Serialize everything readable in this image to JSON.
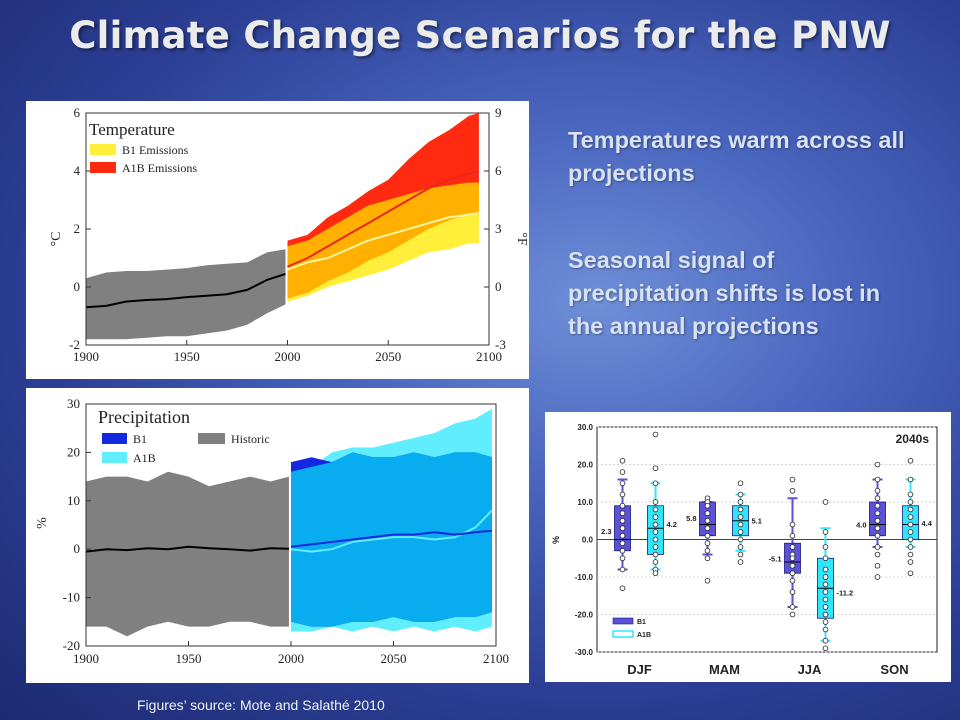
{
  "slide": {
    "title": "Climate Change Scenarios for the PNW",
    "bullet1": "Temperatures warm across all projections",
    "bullet2": "Seasonal signal of precipitation shifts is lost in the annual projections",
    "source": "Figures’ source: Mote and Salathé 2010"
  },
  "colors": {
    "historic": "#808080",
    "b1_band": "#ffef3a",
    "a1b_band": "#ff2a10",
    "overlap_band": "#ffb000",
    "b1_line": "#fff59a",
    "a1b_line": "#e8281a",
    "precip_b1": "#1428e0",
    "precip_a1b": "#60eeff",
    "precip_overlap": "#0aacf0",
    "box_b1": "#5b52d8",
    "box_a1b": "#30e6ff"
  },
  "chart_data": [
    {
      "type": "area",
      "title": "Temperature",
      "ylabel": "°C",
      "y2label": "°F",
      "xlim": [
        1900,
        2100
      ],
      "ylim": [
        -2,
        6
      ],
      "y2lim": [
        -3,
        9
      ],
      "xticks": [
        1900,
        1950,
        2000,
        2050,
        2100
      ],
      "yticks": [
        -2,
        0,
        2,
        4,
        6
      ],
      "y2ticks": [
        -3,
        0,
        3,
        6,
        9
      ],
      "legend": [
        "B1 Emissions",
        "A1B Emissions"
      ],
      "historic": {
        "x": [
          1900,
          1910,
          1920,
          1930,
          1940,
          1950,
          1960,
          1970,
          1980,
          1990,
          1999
        ],
        "mean": [
          -0.7,
          -0.65,
          -0.5,
          -0.45,
          -0.42,
          -0.35,
          -0.3,
          -0.25,
          -0.1,
          0.25,
          0.45
        ],
        "low": [
          -1.8,
          -1.8,
          -1.8,
          -1.75,
          -1.7,
          -1.7,
          -1.6,
          -1.5,
          -1.3,
          -0.9,
          -0.6
        ],
        "high": [
          0.3,
          0.5,
          0.55,
          0.55,
          0.6,
          0.65,
          0.75,
          0.8,
          0.85,
          1.2,
          1.3
        ]
      },
      "series": [
        {
          "name": "B1 Emissions",
          "x": [
            2000,
            2010,
            2020,
            2030,
            2040,
            2050,
            2060,
            2070,
            2080,
            2090,
            2095
          ],
          "mean": [
            0.6,
            0.85,
            1.0,
            1.3,
            1.6,
            1.8,
            2.0,
            2.2,
            2.4,
            2.5,
            2.55
          ],
          "low": [
            -0.5,
            -0.3,
            0.0,
            0.2,
            0.4,
            0.6,
            0.9,
            1.2,
            1.3,
            1.5,
            1.5
          ],
          "high": [
            1.4,
            1.6,
            2.0,
            2.4,
            2.8,
            3.0,
            3.2,
            3.4,
            3.5,
            3.6,
            3.6
          ]
        },
        {
          "name": "A1B Emissions",
          "x": [
            2000,
            2010,
            2020,
            2030,
            2040,
            2050,
            2060,
            2070,
            2080,
            2090,
            2095
          ],
          "mean": [
            0.7,
            1.0,
            1.4,
            1.8,
            2.2,
            2.6,
            3.0,
            3.4,
            3.7,
            3.9,
            4.0
          ],
          "low": [
            -0.4,
            -0.2,
            0.2,
            0.5,
            0.9,
            1.2,
            1.6,
            2.0,
            2.3,
            2.5,
            2.5
          ],
          "high": [
            1.6,
            1.8,
            2.4,
            2.8,
            3.3,
            3.7,
            4.4,
            5.0,
            5.4,
            5.9,
            6.0
          ]
        }
      ]
    },
    {
      "type": "area",
      "title": "Precipitation",
      "ylabel": "%",
      "xlim": [
        1900,
        2100
      ],
      "ylim": [
        -20,
        30
      ],
      "xticks": [
        1900,
        1950,
        2000,
        2050,
        2100
      ],
      "yticks": [
        -20,
        -10,
        0,
        10,
        20,
        30
      ],
      "legend": [
        "B1",
        "A1B",
        "Historic"
      ],
      "historic": {
        "x": [
          1900,
          1910,
          1920,
          1930,
          1940,
          1950,
          1960,
          1970,
          1980,
          1990,
          1999
        ],
        "mean": [
          -0.5,
          0.0,
          -0.2,
          0.2,
          0.0,
          0.5,
          0.2,
          0.0,
          -0.3,
          0.2,
          0.1
        ],
        "low": [
          -16,
          -16,
          -18,
          -16,
          -15,
          -16,
          -16,
          -15,
          -15,
          -16,
          -16
        ],
        "high": [
          14,
          15,
          15,
          14,
          16,
          15,
          13,
          14,
          15,
          14,
          15
        ]
      },
      "series": [
        {
          "name": "B1",
          "x": [
            2000,
            2010,
            2020,
            2030,
            2040,
            2050,
            2060,
            2070,
            2080,
            2090,
            2098
          ],
          "mean": [
            0.5,
            1.0,
            1.5,
            2.0,
            2.5,
            3.0,
            3.0,
            3.5,
            3.0,
            3.5,
            3.8
          ],
          "low": [
            -15,
            -16,
            -16,
            -15,
            -15,
            -14,
            -15,
            -15,
            -14,
            -14,
            -13
          ],
          "high": [
            18,
            19,
            18,
            20,
            19,
            19,
            20,
            19,
            20,
            20,
            19
          ]
        },
        {
          "name": "A1B",
          "x": [
            2000,
            2010,
            2020,
            2030,
            2040,
            2050,
            2060,
            2070,
            2080,
            2090,
            2098
          ],
          "mean": [
            0.0,
            -0.5,
            0.0,
            1.5,
            2.0,
            2.5,
            2.5,
            2.0,
            2.5,
            4.5,
            8.0
          ],
          "low": [
            -17,
            -17,
            -16,
            -17,
            -16,
            -17,
            -16,
            -17,
            -16,
            -17,
            -16
          ],
          "high": [
            16,
            17,
            20,
            21,
            21,
            22,
            23,
            24,
            26,
            27,
            29
          ]
        }
      ]
    },
    {
      "type": "box",
      "title": "2040s",
      "ylabel": "%",
      "ylim": [
        -30,
        30
      ],
      "yticks": [
        -30,
        -20,
        -10,
        0,
        10,
        20,
        30
      ],
      "ytick_labels": [
        "-30.0",
        "-20.0",
        "-10.0",
        "0.0",
        "10.0",
        "20.0",
        "30.0"
      ],
      "categories": [
        "DJF",
        "MAM",
        "JJA",
        "SON"
      ],
      "legend": [
        "B1",
        "A1B"
      ],
      "series": [
        {
          "name": "B1",
          "means": [
            2.3,
            5.8,
            -5.1,
            4.0
          ],
          "mean_labels": [
            "2.3",
            "5.8",
            "-5.1",
            "4.0"
          ],
          "q1": [
            -3,
            1,
            -9,
            1
          ],
          "median": [
            0,
            4,
            -6,
            4
          ],
          "q3": [
            9,
            10,
            -1,
            10
          ],
          "whisker_low": [
            -8,
            -4,
            -18,
            -2
          ],
          "whisker_high": [
            16,
            10,
            11,
            16
          ],
          "points": [
            [
              21,
              18,
              15,
              12,
              9,
              7,
              5,
              3,
              1,
              -1,
              -3,
              -5,
              -8,
              -13
            ],
            [
              11,
              10,
              9,
              7,
              5,
              3,
              1,
              -1,
              -3,
              -5,
              -11
            ],
            [
              16,
              13,
              4,
              1,
              -2,
              -4,
              -5,
              -7,
              -9,
              -11,
              -14,
              -18,
              -20
            ],
            [
              20,
              16,
              13,
              11,
              9,
              7,
              5,
              3,
              1,
              -2,
              -4,
              -7,
              -10
            ]
          ]
        },
        {
          "name": "A1B",
          "means": [
            4.2,
            5.1,
            -11.2,
            4.4
          ],
          "mean_labels": [
            "4.2",
            "5.1",
            "-11.2",
            "4.4"
          ],
          "q1": [
            -4,
            1,
            -21,
            0
          ],
          "median": [
            3,
            5,
            -13,
            4
          ],
          "q3": [
            9,
            9,
            -5,
            9
          ],
          "whisker_low": [
            -8,
            -3,
            -27,
            -2
          ],
          "whisker_high": [
            15,
            12,
            3,
            16
          ],
          "points": [
            [
              28,
              19,
              15,
              10,
              8,
              6,
              4,
              2,
              0,
              -2,
              -4,
              -6,
              -8,
              -9
            ],
            [
              15,
              12,
              10,
              8,
              6,
              4,
              2,
              0,
              -2,
              -4,
              -6
            ],
            [
              10,
              2,
              -2,
              -5,
              -8,
              -10,
              -12,
              -14,
              -16,
              -18,
              -20,
              -22,
              -24,
              -27,
              -29
            ],
            [
              21,
              16,
              12,
              10,
              8,
              6,
              4,
              2,
              0,
              -2,
              -4,
              -6,
              -9
            ]
          ]
        }
      ]
    }
  ]
}
